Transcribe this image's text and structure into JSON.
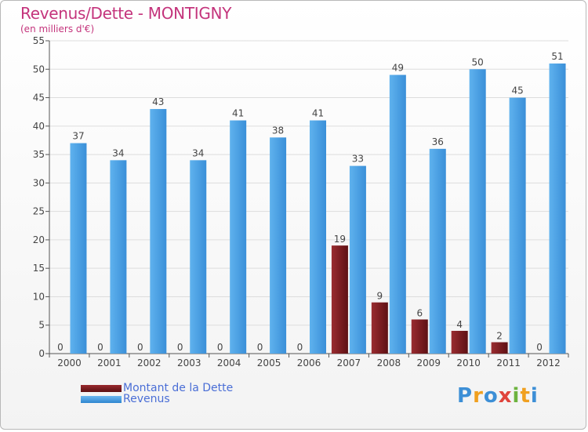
{
  "header": {
    "title": "Revenus/Dette - MONTIGNY",
    "subtitle": "(en milliers d'€)"
  },
  "colors": {
    "revenus": "#4ea3e6",
    "dette": "#7a1a1e",
    "axis": "#555555",
    "grid": "#dddddd",
    "title": "#c4347c"
  },
  "chart_data": {
    "type": "bar",
    "title": "Revenus/Dette - MONTIGNY",
    "subtitle": "(en milliers d'€)",
    "categories": [
      "2000",
      "2001",
      "2002",
      "2003",
      "2004",
      "2005",
      "2006",
      "2007",
      "2008",
      "2009",
      "2010",
      "2011",
      "2012"
    ],
    "series": [
      {
        "name": "Montant de la Dette",
        "values": [
          0,
          0,
          0,
          0,
          0,
          0,
          0,
          19,
          9,
          6,
          4,
          2,
          0
        ]
      },
      {
        "name": "Revenus",
        "values": [
          37,
          34,
          43,
          34,
          41,
          38,
          41,
          33,
          49,
          36,
          50,
          45,
          51
        ]
      }
    ],
    "ylim": [
      0,
      55
    ],
    "yticks": [
      "0",
      "5",
      "10",
      "15",
      "20",
      "25",
      "30",
      "35",
      "40",
      "45",
      "50",
      "55"
    ],
    "grid": true,
    "legend": "bottom-left"
  },
  "legend": {
    "dette_label": "Montant de la Dette",
    "revenus_label": "Revenus"
  },
  "logo": {
    "text": "Proxiti",
    "letters": [
      "P",
      "r",
      "o",
      "x",
      "i",
      "t",
      "i"
    ],
    "colors": [
      "#3d8fd6",
      "#f0a020",
      "#3d8fd6",
      "#e0443c",
      "#6db33f",
      "#f0a020",
      "#3d8fd6"
    ]
  }
}
